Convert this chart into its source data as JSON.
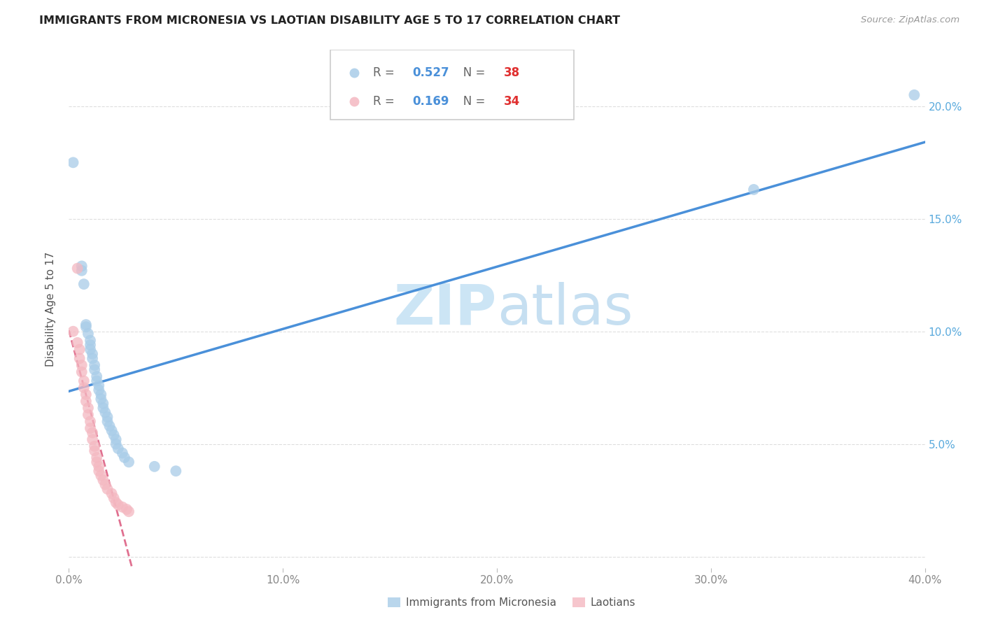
{
  "title": "IMMIGRANTS FROM MICRONESIA VS LAOTIAN DISABILITY AGE 5 TO 17 CORRELATION CHART",
  "source": "Source: ZipAtlas.com",
  "ylabel": "Disability Age 5 to 17",
  "legend_label1": "Immigrants from Micronesia",
  "legend_label2": "Laotians",
  "R1": "0.527",
  "N1": "38",
  "R2": "0.169",
  "N2": "34",
  "color1": "#a8cce8",
  "color2": "#f4b8c1",
  "line_color1": "#4a90d9",
  "line_color2": "#e07090",
  "tick_label_color": "#5aaadd",
  "xlim": [
    0.0,
    0.4
  ],
  "ylim": [
    -0.005,
    0.225
  ],
  "xticks": [
    0.0,
    0.1,
    0.2,
    0.3,
    0.4
  ],
  "yticks": [
    0.0,
    0.05,
    0.1,
    0.15,
    0.2
  ],
  "xtick_labels": [
    "0.0%",
    "10.0%",
    "20.0%",
    "30.0%",
    "40.0%"
  ],
  "ytick_labels": [
    "",
    "5.0%",
    "10.0%",
    "15.0%",
    "20.0%"
  ],
  "blue_points": [
    [
      0.002,
      0.175
    ],
    [
      0.006,
      0.129
    ],
    [
      0.006,
      0.127
    ],
    [
      0.007,
      0.121
    ],
    [
      0.008,
      0.103
    ],
    [
      0.008,
      0.102
    ],
    [
      0.009,
      0.099
    ],
    [
      0.01,
      0.096
    ],
    [
      0.01,
      0.094
    ],
    [
      0.01,
      0.092
    ],
    [
      0.011,
      0.09
    ],
    [
      0.011,
      0.088
    ],
    [
      0.012,
      0.085
    ],
    [
      0.012,
      0.083
    ],
    [
      0.013,
      0.08
    ],
    [
      0.013,
      0.078
    ],
    [
      0.014,
      0.076
    ],
    [
      0.014,
      0.074
    ],
    [
      0.015,
      0.072
    ],
    [
      0.015,
      0.07
    ],
    [
      0.016,
      0.068
    ],
    [
      0.016,
      0.066
    ],
    [
      0.017,
      0.064
    ],
    [
      0.018,
      0.062
    ],
    [
      0.018,
      0.06
    ],
    [
      0.019,
      0.058
    ],
    [
      0.02,
      0.056
    ],
    [
      0.021,
      0.054
    ],
    [
      0.022,
      0.052
    ],
    [
      0.022,
      0.05
    ],
    [
      0.023,
      0.048
    ],
    [
      0.025,
      0.046
    ],
    [
      0.026,
      0.044
    ],
    [
      0.028,
      0.042
    ],
    [
      0.04,
      0.04
    ],
    [
      0.05,
      0.038
    ],
    [
      0.32,
      0.163
    ],
    [
      0.395,
      0.205
    ]
  ],
  "pink_points": [
    [
      0.002,
      0.1
    ],
    [
      0.004,
      0.128
    ],
    [
      0.004,
      0.095
    ],
    [
      0.005,
      0.092
    ],
    [
      0.005,
      0.088
    ],
    [
      0.006,
      0.085
    ],
    [
      0.006,
      0.082
    ],
    [
      0.007,
      0.078
    ],
    [
      0.007,
      0.075
    ],
    [
      0.008,
      0.072
    ],
    [
      0.008,
      0.069
    ],
    [
      0.009,
      0.066
    ],
    [
      0.009,
      0.063
    ],
    [
      0.01,
      0.06
    ],
    [
      0.01,
      0.057
    ],
    [
      0.011,
      0.055
    ],
    [
      0.011,
      0.052
    ],
    [
      0.012,
      0.049
    ],
    [
      0.012,
      0.047
    ],
    [
      0.013,
      0.044
    ],
    [
      0.013,
      0.042
    ],
    [
      0.014,
      0.04
    ],
    [
      0.014,
      0.038
    ],
    [
      0.015,
      0.036
    ],
    [
      0.016,
      0.034
    ],
    [
      0.017,
      0.032
    ],
    [
      0.018,
      0.03
    ],
    [
      0.02,
      0.028
    ],
    [
      0.021,
      0.026
    ],
    [
      0.022,
      0.024
    ],
    [
      0.023,
      0.023
    ],
    [
      0.025,
      0.022
    ],
    [
      0.027,
      0.021
    ],
    [
      0.028,
      0.02
    ]
  ],
  "watermark": "ZIPatlas",
  "watermark_color": "#cce5f5",
  "background_color": "#ffffff",
  "grid_color": "#dedede"
}
